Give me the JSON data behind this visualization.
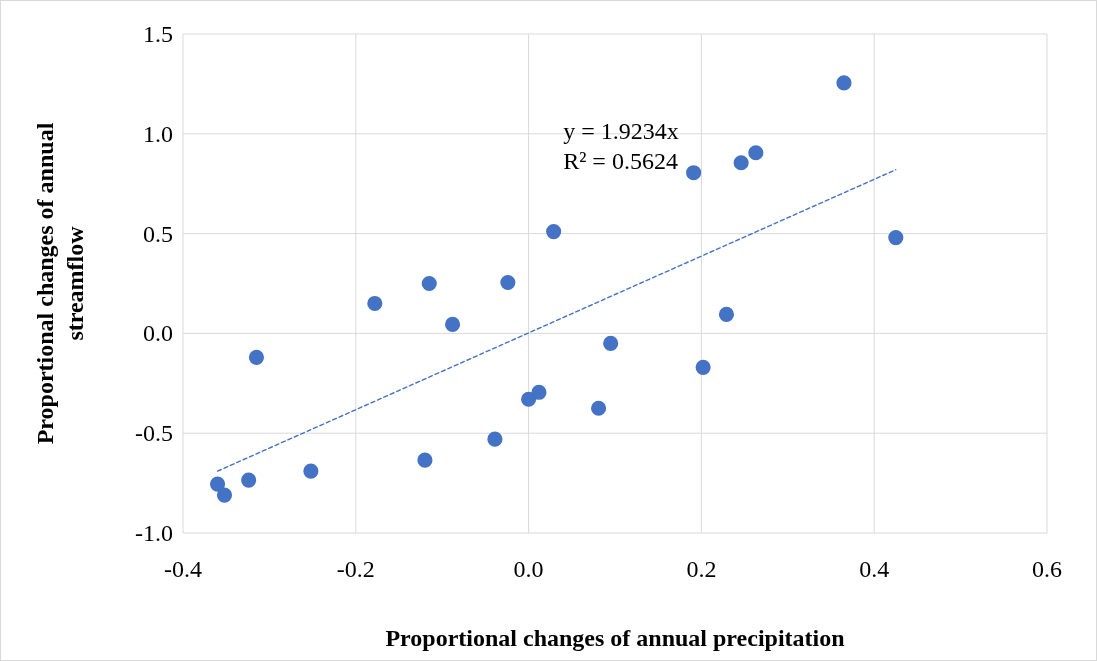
{
  "chart_data": {
    "type": "scatter",
    "xlabel": "Proportional changes of annual precipitation",
    "ylabel": "Proportional changes of annual streamflow",
    "xlim": [
      -0.4,
      0.6
    ],
    "xticks": [
      {
        "value": -0.4,
        "label": "-0.4"
      },
      {
        "value": -0.2,
        "label": "-0.2"
      },
      {
        "value": 0,
        "label": "0.0"
      },
      {
        "value": 0.2,
        "label": "0.2"
      },
      {
        "value": 0.4,
        "label": "0.4"
      },
      {
        "value": 0.6,
        "label": "0.6"
      }
    ],
    "ylim": [
      -1,
      1.5
    ],
    "yticks": [
      {
        "value": -1,
        "label": "-1.0"
      },
      {
        "value": -0.5,
        "label": "-0.5"
      },
      {
        "value": 0,
        "label": "0.0"
      },
      {
        "value": 0.5,
        "label": "0.5"
      },
      {
        "value": 1,
        "label": "1.0"
      },
      {
        "value": 1.5,
        "label": "1.5"
      }
    ],
    "grid": true,
    "marker": "circle",
    "annotations": [
      "y = 1.9234x",
      "R² = 0.5624"
    ],
    "series": [
      {
        "color": "#4472c4",
        "x": [
          -0.36,
          -0.352,
          -0.324,
          -0.315,
          -0.252,
          -0.178,
          -0.115,
          -0.12,
          -0.088,
          -0.024,
          -0.039,
          0.0,
          0.012,
          0.029,
          0.081,
          0.095,
          0.191,
          0.202,
          0.229,
          0.246,
          0.263,
          0.365,
          0.425
        ],
        "values": [
          -0.755,
          -0.81,
          -0.735,
          -0.12,
          -0.69,
          0.15,
          0.25,
          -0.635,
          0.045,
          0.255,
          -0.53,
          -0.33,
          -0.295,
          0.51,
          -0.375,
          -0.05,
          0.805,
          -0.17,
          0.095,
          0.855,
          0.905,
          1.255,
          0.48
        ]
      },
      {
        "type": "line",
        "color": "#4472c4",
        "line_style": "dashed",
        "marker": "none",
        "x": [
          -0.36,
          0.425
        ],
        "values": [
          -0.69,
          0.82
        ]
      }
    ]
  }
}
